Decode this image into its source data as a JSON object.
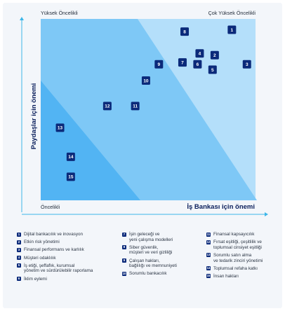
{
  "chart_data": {
    "type": "scatter",
    "xlabel": "İş Bankası için önemi",
    "ylabel": "Paydaşlar için önemi",
    "xlim": [
      0,
      100
    ],
    "ylim": [
      0,
      100
    ],
    "grid": false,
    "quadrant_labels": {
      "top_left": "Yüksek Öncelikli",
      "top_right": "Çok Yüksek Öncelikli",
      "bottom_left": "Öncelikli"
    },
    "points": [
      {
        "id": "1",
        "x": 89,
        "y": 94
      },
      {
        "id": "2",
        "x": 81,
        "y": 80
      },
      {
        "id": "3",
        "x": 96,
        "y": 75
      },
      {
        "id": "4",
        "x": 74,
        "y": 81
      },
      {
        "id": "5",
        "x": 80,
        "y": 72
      },
      {
        "id": "6",
        "x": 73,
        "y": 75
      },
      {
        "id": "7",
        "x": 66,
        "y": 76
      },
      {
        "id": "8",
        "x": 67,
        "y": 93
      },
      {
        "id": "9",
        "x": 55,
        "y": 75
      },
      {
        "id": "10",
        "x": 49,
        "y": 66
      },
      {
        "id": "11",
        "x": 44,
        "y": 52
      },
      {
        "id": "12",
        "x": 31,
        "y": 52
      },
      {
        "id": "13",
        "x": 9,
        "y": 40
      },
      {
        "id": "14",
        "x": 14,
        "y": 24
      },
      {
        "id": "15",
        "x": 14,
        "y": 13
      }
    ],
    "colors": {
      "band_low": "#52b4f3",
      "band_mid": "#7ec8f6",
      "band_high": "#b4dffa",
      "marker": "#0b2a7a",
      "axis": "#3cb6e8",
      "title": "#0b1f5c"
    }
  },
  "legend": {
    "columns": [
      [
        {
          "id": "1",
          "text": "Dijital bankacılık ve inovasyon"
        },
        {
          "id": "2",
          "text": "Etkin risk yönetimi"
        },
        {
          "id": "3",
          "text": "Finansal performans ve karlılık"
        },
        {
          "id": "4",
          "text": "Müşteri odaklılık"
        },
        {
          "id": "5",
          "text": "İş etiği, şeffaflık, kurumsal\nyönetim ve sürdürülebilir raporlama"
        },
        {
          "id": "6",
          "text": "İklim eylemi"
        }
      ],
      [
        {
          "id": "7",
          "text": "İşin geleceği ve\nyeni çalışma modelleri"
        },
        {
          "id": "8",
          "text": "Siber güvenlik,\nmüşteri ve veri gizliliği"
        },
        {
          "id": "9",
          "text": "Çalışan hakları,\nbağlılığı ve memnuniyeti"
        },
        {
          "id": "10",
          "text": "Sorumlu bankacılık"
        }
      ],
      [
        {
          "id": "11",
          "text": "Finansal kapsayıcılık"
        },
        {
          "id": "12",
          "text": "Fırsat eşitliği, çeşitlilik ve\ntoplumsal cinsiyet eşitliği"
        },
        {
          "id": "13",
          "text": "Sorumlu satın alma\nve tedarik zinciri yönetimi"
        },
        {
          "id": "14",
          "text": "Toplumsal refaha katkı"
        },
        {
          "id": "15",
          "text": "İnsan hakları"
        }
      ]
    ]
  }
}
